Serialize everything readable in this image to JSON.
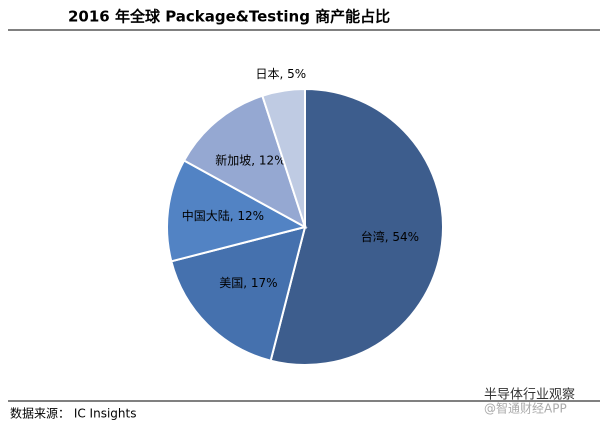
{
  "chart_data": {
    "type": "pie",
    "title": "2016 年全球 Package&Testing 商产能占比",
    "values": [
      54,
      17,
      12,
      12,
      5
    ],
    "value_labels": [
      "台湾, 54%",
      "美国, 17%",
      "中国大陆, 12%",
      "新加坡, 12%",
      "日本, 5%"
    ],
    "colors": [
      "#3d5d8d",
      "#4571ae",
      "#5283c4",
      "#95a8d2",
      "#bfcbe3"
    ],
    "source": "数据来源： IC Insights",
    "watermark": [
      "半导体行业观察",
      "@智通财经APP"
    ]
  }
}
